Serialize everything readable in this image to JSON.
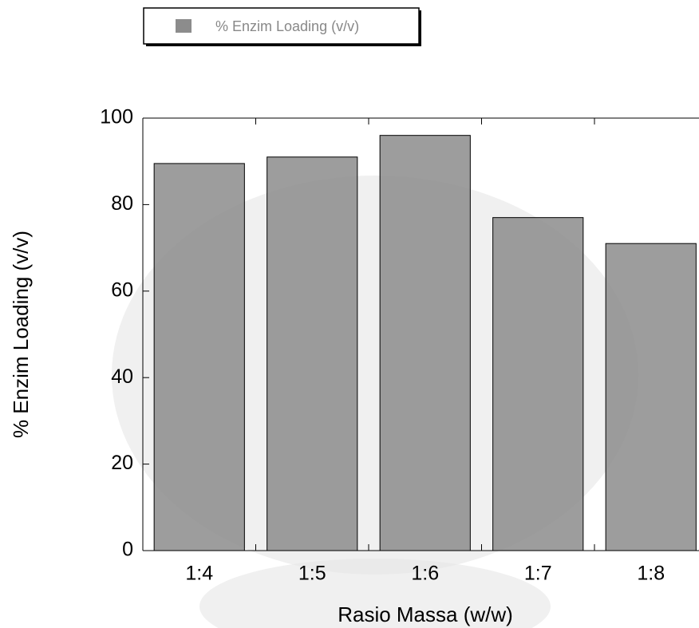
{
  "chart_data": {
    "type": "bar",
    "xlabel": "Rasio Massa (w/w)",
    "ylabel": "% Enzim Loading (v/v)",
    "categories": [
      "1:4",
      "1:5",
      "1:6",
      "1:7",
      "1:8"
    ],
    "series": [
      {
        "name": "% Enzim Loading (v/v)",
        "color": "#8c8c8c",
        "values": [
          89.5,
          91,
          96,
          77,
          71
        ]
      }
    ],
    "ylim": [
      0,
      100
    ],
    "yticks": [
      0,
      20,
      40,
      60,
      80,
      100
    ]
  }
}
